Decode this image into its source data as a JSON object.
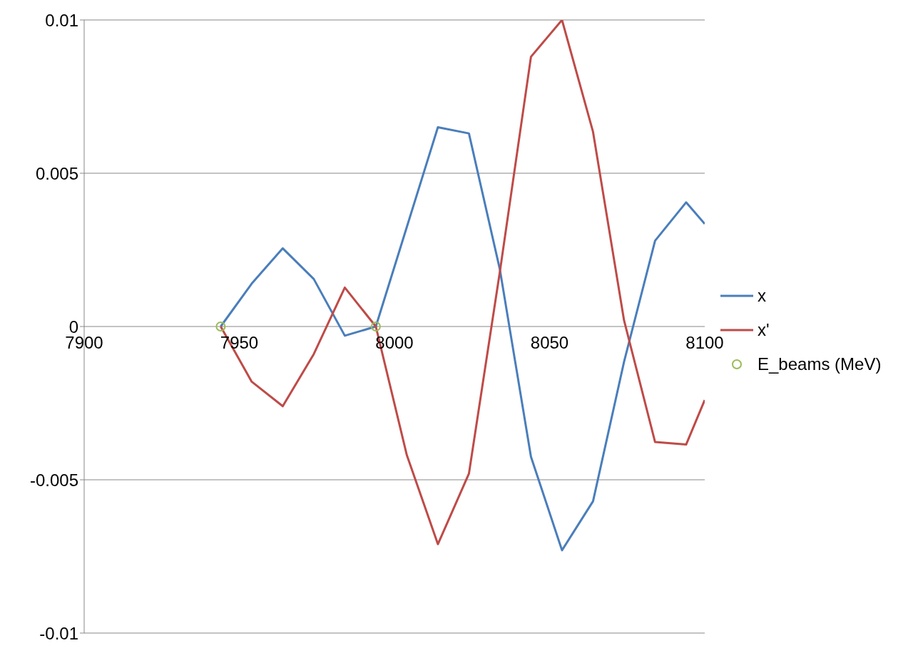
{
  "chart_data": {
    "type": "line",
    "x": [
      7944,
      7954,
      7964,
      7974,
      7984,
      7994,
      8004,
      8014,
      8024,
      8034,
      8044,
      8054,
      8064,
      8074,
      8084,
      8094,
      8100
    ],
    "series": [
      {
        "name": "x",
        "color": "#4a7ebb",
        "values": [
          0,
          0.0014,
          0.00255,
          0.00155,
          -0.0003,
          0,
          0.00325,
          0.0065,
          0.0063,
          0.00185,
          -0.00425,
          -0.0073,
          -0.0057,
          -0.00115,
          0.0028,
          0.00405,
          0.00335
        ]
      },
      {
        "name": "x'",
        "color": "#be4b48",
        "values": [
          0,
          -0.0018,
          -0.0026,
          -0.0009,
          0.00127,
          0,
          -0.0042,
          -0.0071,
          -0.0048,
          0.0018,
          0.0088,
          0.01,
          0.00635,
          0.0002,
          -0.00377,
          -0.00385,
          -0.0024
        ]
      },
      {
        "name": "E_beams (MeV)",
        "type": "scatter",
        "color": "#9bbb59",
        "marker": "circle",
        "x": [
          7944,
          7994
        ],
        "values": [
          0,
          0
        ]
      }
    ],
    "xlim": [
      7900,
      8100
    ],
    "xticks": [
      7900,
      7950,
      8000,
      8050,
      8100
    ],
    "ylim": [
      -0.01,
      0.01
    ],
    "yticks": [
      -0.01,
      -0.005,
      0,
      0.005,
      0.01
    ],
    "grid": "y",
    "legend": "right",
    "marker": "none",
    "line_style": "solid"
  }
}
